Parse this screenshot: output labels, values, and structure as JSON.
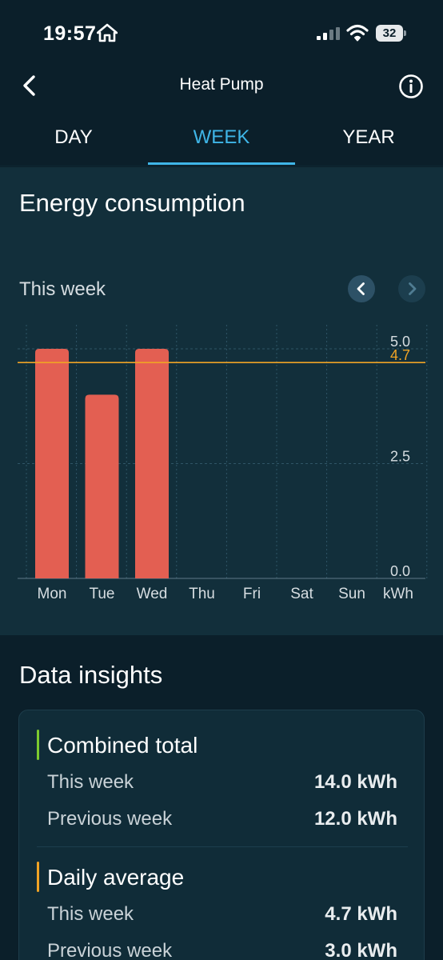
{
  "status_bar": {
    "time": "19:57",
    "battery": "32"
  },
  "header": {
    "title": "Heat Pump"
  },
  "tabs": [
    {
      "label": "DAY",
      "active": false
    },
    {
      "label": "WEEK",
      "active": true
    },
    {
      "label": "YEAR",
      "active": false
    }
  ],
  "energy": {
    "title": "Energy consumption",
    "period": "This week"
  },
  "chart_data": {
    "type": "bar",
    "categories": [
      "Mon",
      "Tue",
      "Wed",
      "Thu",
      "Fri",
      "Sat",
      "Sun"
    ],
    "values": [
      5.0,
      4.0,
      5.0,
      null,
      null,
      null,
      null
    ],
    "average_line": 4.7,
    "average_label": "4.7",
    "unit_label": "kWh",
    "y_ticks": [
      "0.0",
      "2.5",
      "5.0"
    ],
    "ylim": [
      0,
      5.0
    ],
    "bar_color": "#e35f52",
    "average_color": "#f0a325",
    "grid": true
  },
  "insights": {
    "title": "Data insights",
    "groups": [
      {
        "label": "Combined total",
        "accent": "#7ccb2e",
        "rows": [
          {
            "label": "This week",
            "value": "14.0 kWh"
          },
          {
            "label": "Previous week",
            "value": "12.0 kWh"
          }
        ]
      },
      {
        "label": "Daily average",
        "accent": "#f0a325",
        "rows": [
          {
            "label": "This week",
            "value": "4.7 kWh"
          },
          {
            "label": "Previous week",
            "value": "3.0 kWh"
          }
        ]
      }
    ]
  }
}
